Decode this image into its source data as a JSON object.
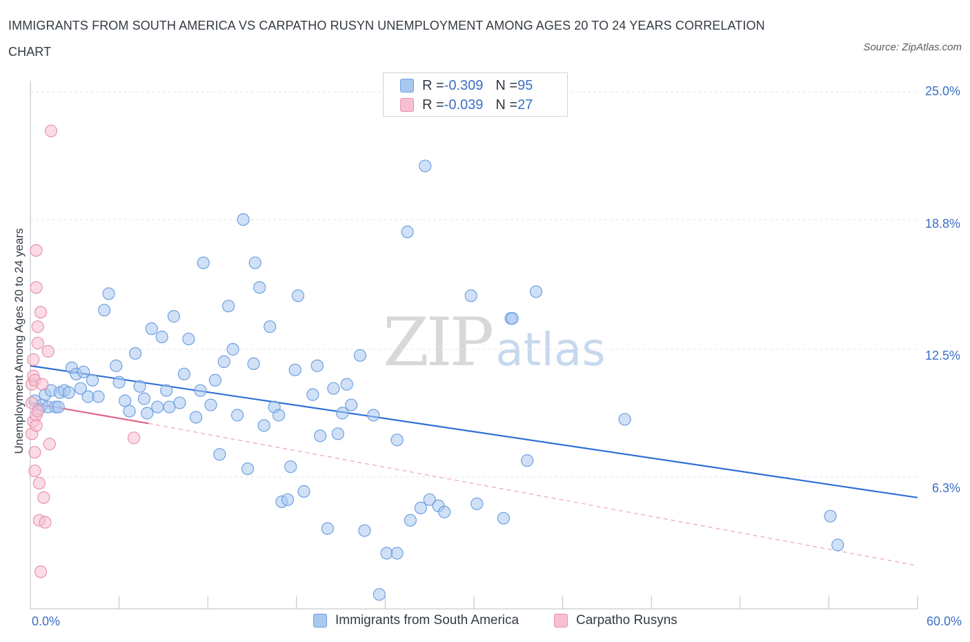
{
  "title": "IMMIGRANTS FROM SOUTH AMERICA VS CARPATHO RUSYN UNEMPLOYMENT AMONG AGES 20 TO 24 YEARS CORRELATION CHART",
  "source": "Source: ZipAtlas.com",
  "watermark": {
    "zip": "ZIP",
    "atlas": "atlas"
  },
  "legend": {
    "rows": [
      {
        "r_label": "R = ",
        "r_value": "-0.309",
        "n_label": "N = ",
        "n_value": "95",
        "color": "#a9c8f0",
        "border": "#6e9fe0"
      },
      {
        "r_label": "R = ",
        "r_value": "-0.039",
        "n_label": "N = ",
        "n_value": "27",
        "color": "#f7c0d0",
        "border": "#e892ad"
      }
    ]
  },
  "bottom_legend": [
    {
      "label": "Immigrants from South America",
      "color": "#a9c8f0",
      "border": "#6e9fe0"
    },
    {
      "label": "Carpatho Rusyns",
      "color": "#f7c0d0",
      "border": "#e892ad"
    }
  ],
  "chart_data": {
    "type": "scatter",
    "title": "IMMIGRANTS FROM SOUTH AMERICA VS CARPATHO RUSYN UNEMPLOYMENT AMONG AGES 20 TO 24 YEARS CORRELATION CHART",
    "xlabel": "",
    "ylabel": "Unemployment Among Ages 20 to 24 years",
    "xlim": [
      0,
      60
    ],
    "ylim": [
      0,
      25
    ],
    "x_tick_labels": [
      "0.0%",
      "60.0%"
    ],
    "y_ticks": [
      6.3,
      12.5,
      18.8,
      25.0
    ],
    "y_tick_labels": [
      "6.3%",
      "12.5%",
      "18.8%",
      "25.0%"
    ],
    "grid": true,
    "legend_position": "top-center",
    "series": [
      {
        "name": "Immigrants from South America",
        "color": "#6e9fe0",
        "fill": "#a9c8f0",
        "trend": {
          "x": [
            0,
            60
          ],
          "y": [
            11.7,
            5.3
          ]
        },
        "points": [
          [
            0.3,
            10.0
          ],
          [
            0.6,
            9.6
          ],
          [
            0.8,
            9.8
          ],
          [
            1.0,
            10.3
          ],
          [
            1.2,
            9.7
          ],
          [
            1.4,
            10.5
          ],
          [
            1.7,
            9.7
          ],
          [
            2.0,
            10.4
          ],
          [
            2.3,
            10.5
          ],
          [
            2.6,
            10.4
          ],
          [
            2.8,
            11.6
          ],
          [
            3.1,
            11.3
          ],
          [
            3.4,
            10.6
          ],
          [
            3.6,
            11.4
          ],
          [
            3.9,
            10.2
          ],
          [
            4.2,
            11.0
          ],
          [
            4.6,
            10.2
          ],
          [
            5.0,
            14.4
          ],
          [
            5.3,
            15.2
          ],
          [
            5.8,
            11.7
          ],
          [
            6.0,
            10.9
          ],
          [
            6.4,
            10.0
          ],
          [
            6.7,
            9.5
          ],
          [
            7.1,
            12.3
          ],
          [
            7.4,
            10.7
          ],
          [
            7.7,
            10.1
          ],
          [
            7.9,
            9.4
          ],
          [
            8.2,
            13.5
          ],
          [
            8.6,
            9.7
          ],
          [
            8.9,
            13.1
          ],
          [
            9.2,
            10.5
          ],
          [
            9.4,
            9.7
          ],
          [
            9.7,
            14.1
          ],
          [
            10.1,
            9.9
          ],
          [
            10.4,
            11.3
          ],
          [
            10.7,
            13.0
          ],
          [
            11.2,
            9.2
          ],
          [
            11.5,
            10.5
          ],
          [
            11.7,
            16.7
          ],
          [
            12.2,
            9.8
          ],
          [
            12.5,
            11.0
          ],
          [
            12.8,
            7.4
          ],
          [
            13.1,
            11.9
          ],
          [
            13.4,
            14.6
          ],
          [
            13.7,
            12.5
          ],
          [
            14.0,
            9.3
          ],
          [
            14.4,
            18.8
          ],
          [
            14.7,
            6.7
          ],
          [
            15.1,
            11.8
          ],
          [
            15.2,
            16.7
          ],
          [
            15.5,
            15.5
          ],
          [
            15.8,
            8.8
          ],
          [
            16.2,
            13.6
          ],
          [
            16.5,
            9.7
          ],
          [
            16.8,
            9.3
          ],
          [
            17.0,
            5.1
          ],
          [
            17.4,
            5.2
          ],
          [
            17.6,
            6.8
          ],
          [
            17.9,
            11.5
          ],
          [
            18.1,
            15.1
          ],
          [
            18.5,
            5.6
          ],
          [
            19.1,
            10.3
          ],
          [
            19.4,
            11.7
          ],
          [
            19.6,
            8.3
          ],
          [
            20.1,
            3.8
          ],
          [
            20.5,
            10.6
          ],
          [
            20.8,
            8.4
          ],
          [
            21.1,
            9.4
          ],
          [
            21.4,
            10.8
          ],
          [
            21.7,
            9.8
          ],
          [
            22.3,
            12.2
          ],
          [
            22.6,
            3.7
          ],
          [
            23.2,
            9.3
          ],
          [
            23.6,
            0.6
          ],
          [
            24.1,
            2.6
          ],
          [
            24.8,
            2.6
          ],
          [
            24.8,
            8.1
          ],
          [
            25.5,
            18.2
          ],
          [
            25.7,
            4.2
          ],
          [
            26.4,
            4.8
          ],
          [
            26.7,
            21.4
          ],
          [
            27.0,
            5.2
          ],
          [
            27.6,
            4.9
          ],
          [
            28.0,
            4.6
          ],
          [
            29.8,
            15.1
          ],
          [
            30.2,
            5.0
          ],
          [
            32.0,
            4.3
          ],
          [
            32.5,
            14.0
          ],
          [
            32.6,
            14.0
          ],
          [
            33.6,
            7.1
          ],
          [
            34.2,
            15.3
          ],
          [
            40.2,
            9.1
          ],
          [
            54.1,
            4.4
          ],
          [
            54.6,
            3.0
          ],
          [
            1.9,
            9.7
          ]
        ]
      },
      {
        "name": "Carpatho Rusyns",
        "color": "#e892ad",
        "fill": "#f7c0d0",
        "trend": {
          "x": [
            0,
            8
          ],
          "y": [
            9.9,
            8.9
          ]
        },
        "trend_dashed": {
          "x": [
            8,
            60
          ],
          "y": [
            8.9,
            2.0
          ]
        },
        "points": [
          [
            0.1,
            10.8
          ],
          [
            0.1,
            9.9
          ],
          [
            0.1,
            8.4
          ],
          [
            0.2,
            11.2
          ],
          [
            0.2,
            9.0
          ],
          [
            0.3,
            11.0
          ],
          [
            0.3,
            6.6
          ],
          [
            0.3,
            7.5
          ],
          [
            0.4,
            9.3
          ],
          [
            0.4,
            8.8
          ],
          [
            0.4,
            17.3
          ],
          [
            0.4,
            15.5
          ],
          [
            0.5,
            13.6
          ],
          [
            0.5,
            12.8
          ],
          [
            0.6,
            6.0
          ],
          [
            0.6,
            4.2
          ],
          [
            0.7,
            1.7
          ],
          [
            0.7,
            14.3
          ],
          [
            0.8,
            10.8
          ],
          [
            0.9,
            5.3
          ],
          [
            1.0,
            4.1
          ],
          [
            1.2,
            12.4
          ],
          [
            1.3,
            7.9
          ],
          [
            1.4,
            23.1
          ],
          [
            7.0,
            8.2
          ],
          [
            0.2,
            12.0
          ],
          [
            0.5,
            9.5
          ]
        ]
      }
    ]
  }
}
